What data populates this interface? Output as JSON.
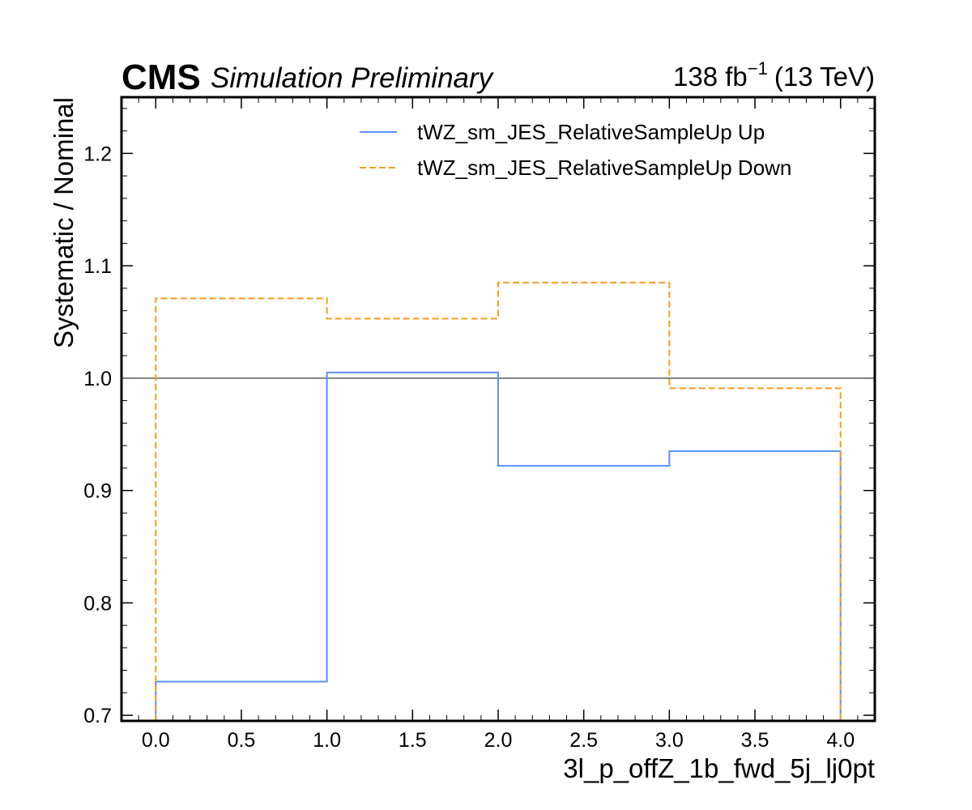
{
  "header": {
    "experiment": "CMS",
    "status": "Simulation Preliminary",
    "lumi_value": "138 fb",
    "lumi_exp": "−1",
    "energy": "(13 TeV)"
  },
  "chart_data": {
    "type": "line",
    "drawstyle": "step",
    "xlabel": "3l_p_offZ_1b_fwd_5j_lj0pt",
    "ylabel": "Systematic / Nominal",
    "xlim": [
      -0.2,
      4.2
    ],
    "ylim": [
      0.695,
      1.25
    ],
    "xticks": [
      0.0,
      0.5,
      1.0,
      1.5,
      2.0,
      2.5,
      3.0,
      3.5,
      4.0
    ],
    "xtick_labels": [
      "0.0",
      "0.5",
      "1.0",
      "1.5",
      "2.0",
      "2.5",
      "3.0",
      "3.5",
      "4.0"
    ],
    "yticks": [
      0.7,
      0.8,
      0.9,
      1.0,
      1.1,
      1.2
    ],
    "ytick_labels": [
      "0.7",
      "0.8",
      "0.9",
      "1.0",
      "1.1",
      "1.2"
    ],
    "bin_edges": [
      0,
      1,
      2,
      3,
      4
    ],
    "reference_line": 1.0,
    "grid": false,
    "legend_position": "top-right",
    "series": [
      {
        "name": "tWZ_sm_JES_RelativeSampleUp Up",
        "values": [
          0.73,
          1.005,
          0.922,
          0.935
        ],
        "color": "#5790fc",
        "linestyle": "solid"
      },
      {
        "name": "tWZ_sm_JES_RelativeSampleUp Down",
        "values": [
          1.071,
          1.053,
          1.085,
          0.991
        ],
        "color": "#f89c20",
        "linestyle": "dashed"
      }
    ],
    "reference_color": "#808080"
  }
}
